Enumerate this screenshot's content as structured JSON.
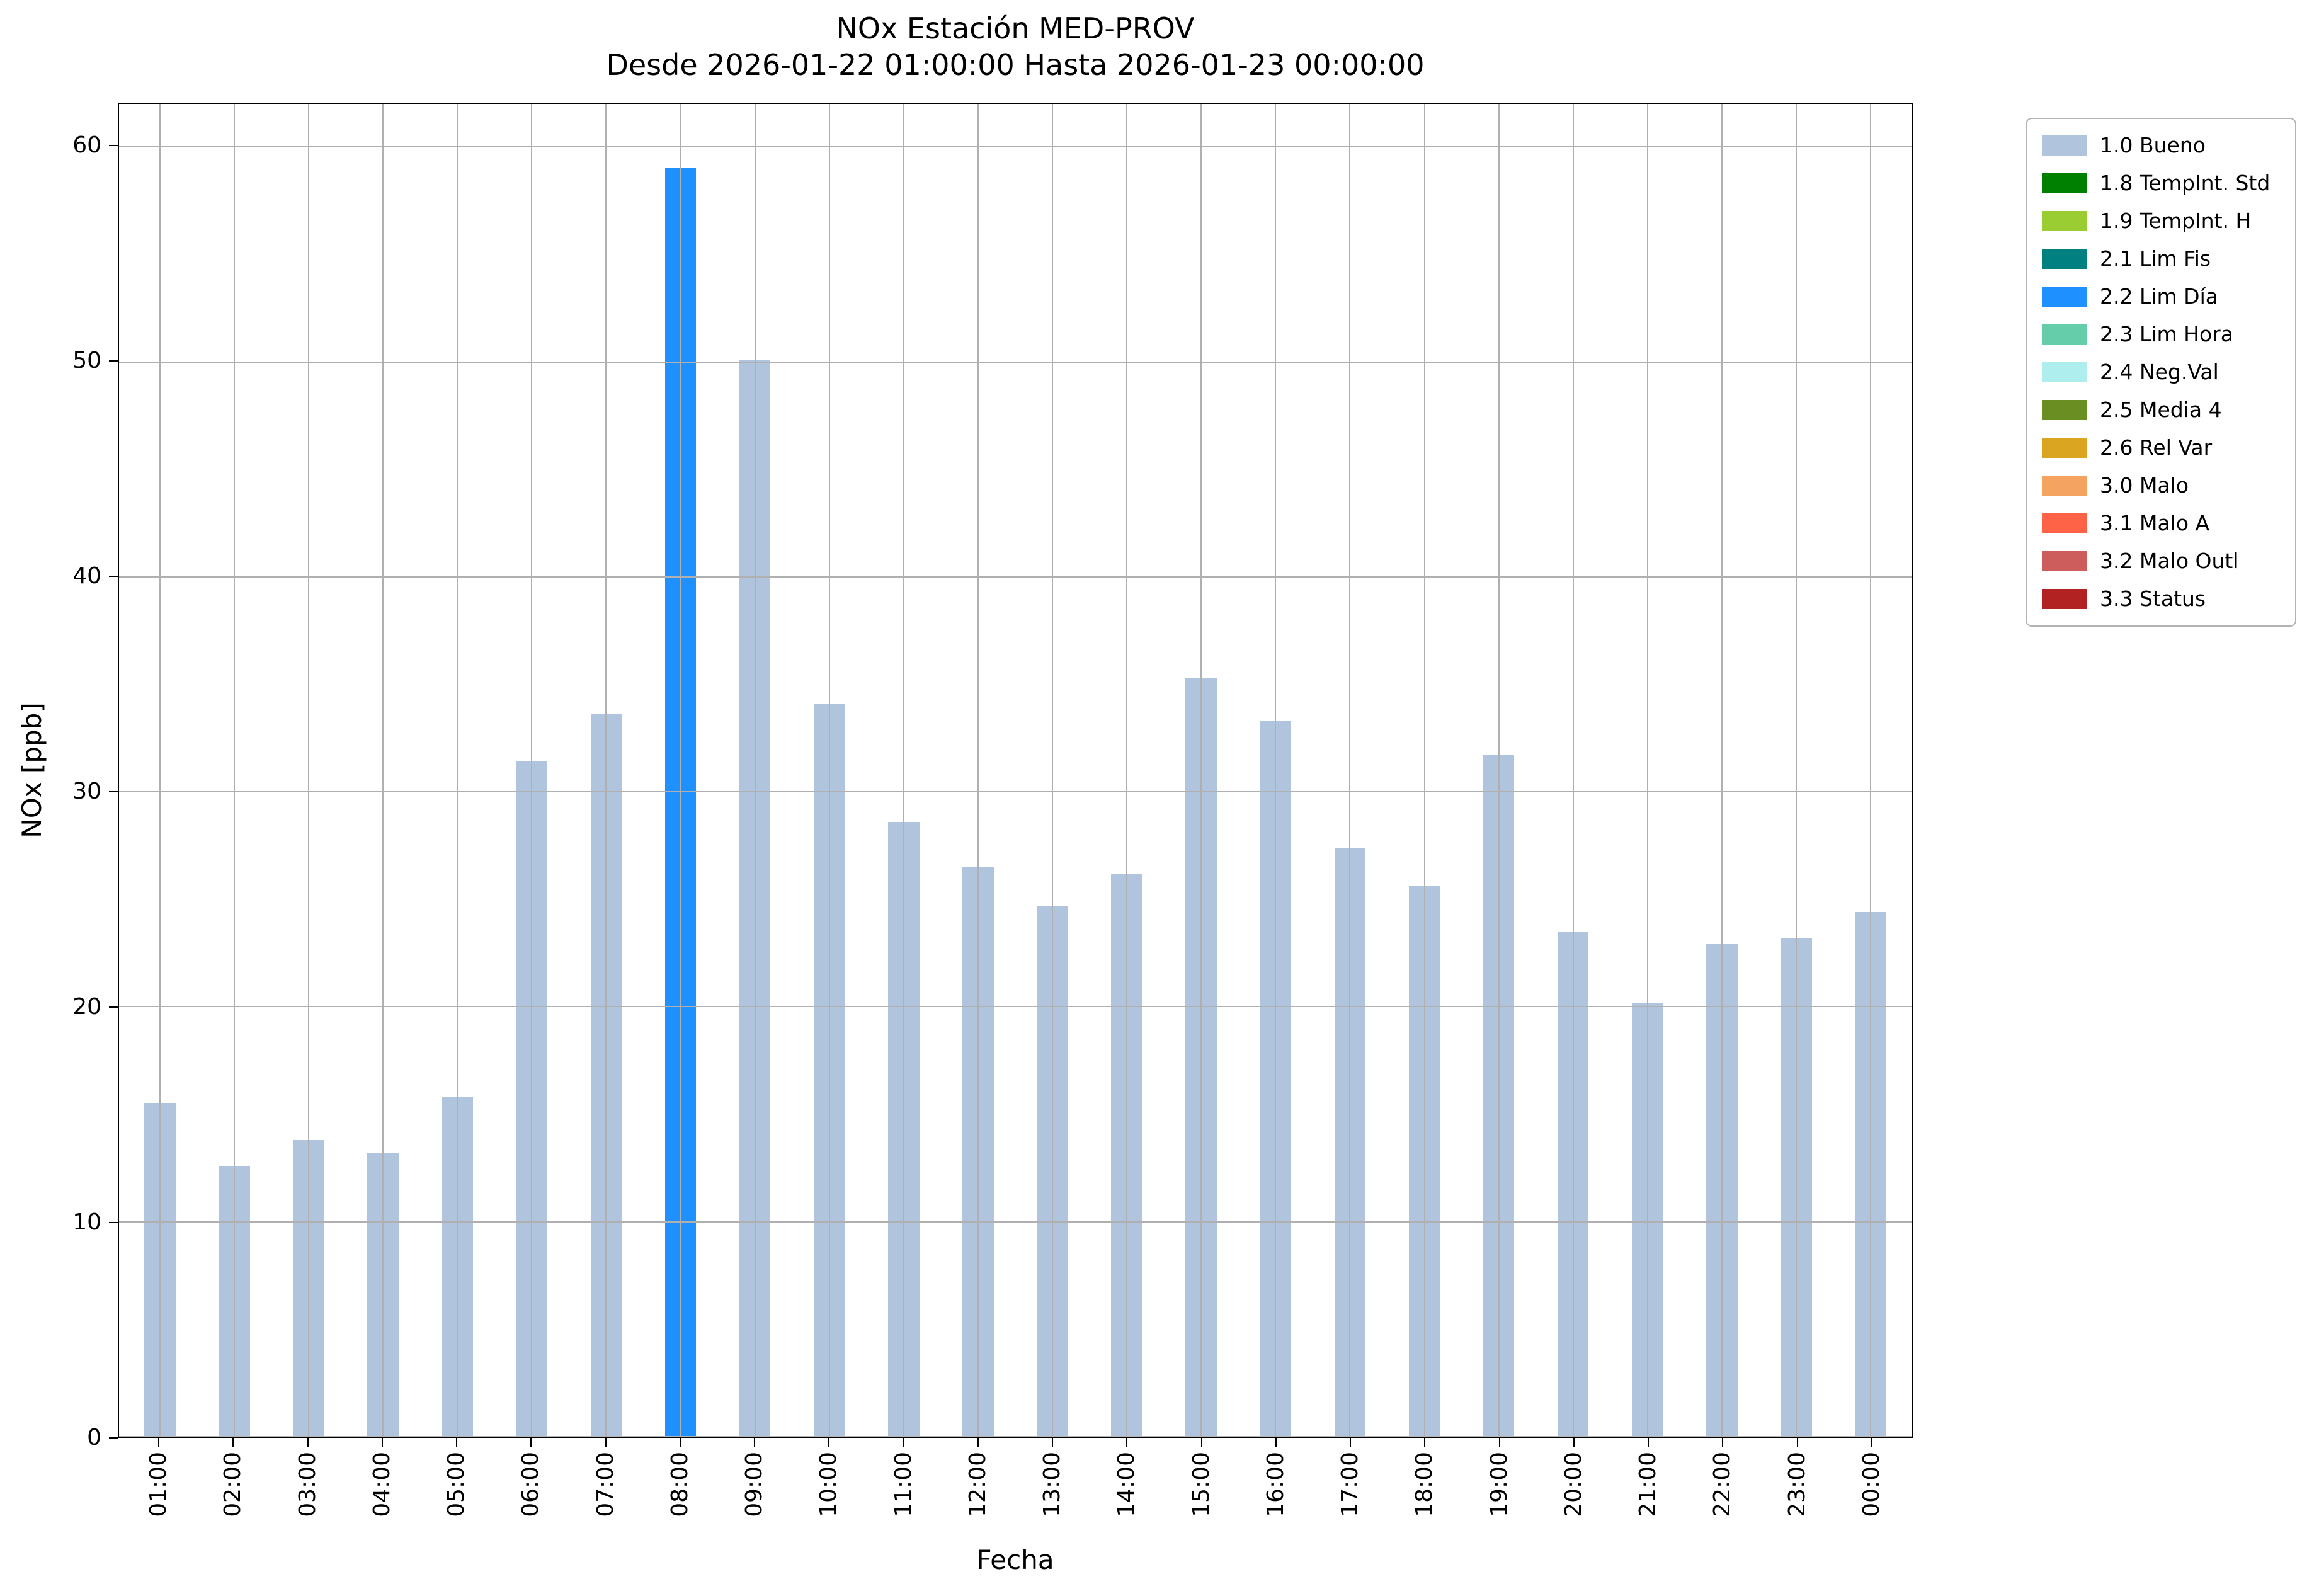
{
  "chart_data": {
    "type": "bar",
    "title": "NOx Estación MED-PROV",
    "subtitle": "Desde 2026-01-22 01:00:00 Hasta 2026-01-23 00:00:00",
    "xlabel": "Fecha",
    "ylabel": "NOx [ppb]",
    "ylim": [
      0,
      62
    ],
    "yticks": [
      0,
      10,
      20,
      30,
      40,
      50,
      60
    ],
    "grid": true,
    "legend_position": "outside upper right",
    "edge_margin": 0.55,
    "bar_width": 0.42,
    "categories": [
      "01:00",
      "02:00",
      "03:00",
      "04:00",
      "05:00",
      "06:00",
      "07:00",
      "08:00",
      "09:00",
      "10:00",
      "11:00",
      "12:00",
      "13:00",
      "14:00",
      "15:00",
      "16:00",
      "17:00",
      "18:00",
      "19:00",
      "20:00",
      "21:00",
      "22:00",
      "23:00",
      "00:00"
    ],
    "values": [
      15.5,
      12.6,
      13.8,
      13.2,
      15.8,
      31.4,
      33.6,
      59.0,
      50.1,
      34.1,
      28.6,
      26.5,
      24.7,
      26.2,
      35.3,
      33.3,
      27.4,
      25.6,
      31.7,
      23.5,
      20.2,
      22.9,
      23.2,
      24.4
    ],
    "statuses": [
      "1.0",
      "1.0",
      "1.0",
      "1.0",
      "1.0",
      "1.0",
      "1.0",
      "2.2",
      "1.0",
      "1.0",
      "1.0",
      "1.0",
      "1.0",
      "1.0",
      "1.0",
      "1.0",
      "1.0",
      "1.0",
      "1.0",
      "1.0",
      "1.0",
      "1.0",
      "1.0",
      "1.0"
    ],
    "legend": {
      "entries": [
        {
          "code": "1.0",
          "label": "1.0 Bueno",
          "color": "#b0c4de"
        },
        {
          "code": "1.8",
          "label": "1.8 TempInt. Std",
          "color": "#008000"
        },
        {
          "code": "1.9",
          "label": "1.9 TempInt. H",
          "color": "#9acd32"
        },
        {
          "code": "2.1",
          "label": "2.1 Lim Fis",
          "color": "#008080"
        },
        {
          "code": "2.2",
          "label": "2.2 Lim Día",
          "color": "#1e90ff"
        },
        {
          "code": "2.3",
          "label": "2.3 Lim Hora",
          "color": "#66cdaa"
        },
        {
          "code": "2.4",
          "label": "2.4 Neg.Val",
          "color": "#afeeee"
        },
        {
          "code": "2.5",
          "label": "2.5 Media 4",
          "color": "#6b8e23"
        },
        {
          "code": "2.6",
          "label": "2.6 Rel Var",
          "color": "#daa520"
        },
        {
          "code": "3.0",
          "label": "3.0 Malo",
          "color": "#f4a460"
        },
        {
          "code": "3.1",
          "label": "3.1 Malo A",
          "color": "#ff6347"
        },
        {
          "code": "3.2",
          "label": "3.2 Malo Outl",
          "color": "#cd5c5c"
        },
        {
          "code": "3.3",
          "label": "3.3 Status",
          "color": "#b22222"
        }
      ]
    }
  }
}
